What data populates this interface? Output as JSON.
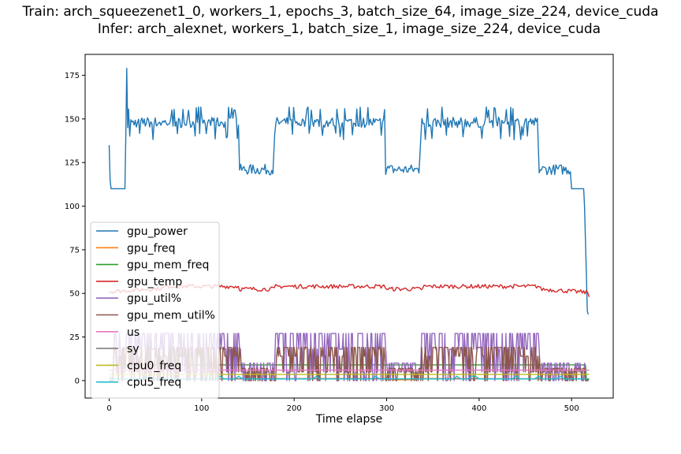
{
  "chart_data": {
    "type": "line",
    "title_lines": [
      "Train: arch_squeezenet1_0, workers_1, epochs_3, batch_size_64, image_size_224, device_cuda",
      "Infer: arch_alexnet, workers_1, batch_size_1, image_size_224, device_cuda"
    ],
    "xlabel": "Time elapse",
    "ylabel": "",
    "xlim": [
      -26,
      545
    ],
    "ylim": [
      -10,
      187
    ],
    "xticks": [
      0,
      100,
      200,
      300,
      400,
      500
    ],
    "yticks": [
      0,
      25,
      50,
      75,
      100,
      125,
      150,
      175
    ],
    "grid": false,
    "legend_position": "lower-left",
    "series": [
      {
        "name": "gpu_power",
        "color": "#1f77b4",
        "x": [
          0,
          1,
          2,
          3,
          8,
          12,
          17,
          18,
          19,
          20,
          22,
          24,
          26,
          30,
          34,
          38,
          42,
          46,
          50,
          56,
          60,
          64,
          70,
          76,
          82,
          88,
          94,
          100,
          106,
          112,
          118,
          124,
          128,
          133,
          140,
          146,
          152,
          158,
          164,
          170,
          176,
          180,
          181,
          186,
          192,
          200,
          208,
          216,
          224,
          232,
          240,
          248,
          256,
          264,
          272,
          280,
          288,
          294,
          300,
          306,
          312,
          318,
          324,
          330,
          336,
          338,
          344,
          352,
          360,
          368,
          376,
          384,
          392,
          400,
          408,
          416,
          424,
          432,
          440,
          448,
          456,
          462,
          466,
          470,
          478,
          486,
          494,
          500,
          506,
          512,
          513,
          514,
          516,
          518
        ],
        "y": [
          135,
          115,
          110,
          110,
          110,
          110,
          110,
          140,
          179,
          145,
          140,
          155,
          147,
          150,
          143,
          152,
          140,
          155,
          148,
          138,
          152,
          145,
          150,
          140,
          152,
          138,
          150,
          145,
          154,
          140,
          150,
          145,
          155,
          147,
          150,
          145,
          154,
          140,
          148,
          153,
          147,
          150,
          145,
          150,
          145,
          150,
          143,
          155,
          140,
          150,
          147,
          155,
          140,
          150,
          143,
          155,
          140,
          150,
          147,
          155,
          140,
          150,
          143,
          155,
          145,
          147,
          150,
          145,
          150,
          143,
          155,
          140,
          150,
          147,
          155,
          140,
          150,
          143,
          155,
          140,
          150,
          147,
          123,
          120,
          118,
          125,
          120,
          117,
          122,
          110,
          110,
          110,
          110,
          60
        ],
        "segments_y_level": [
          [
            121,
            144,
            122
          ],
          [
            178,
            180,
            120
          ],
          [
            300,
            337,
            121
          ],
          [
            467,
            500,
            121
          ],
          [
            500,
            514,
            110
          ],
          [
            514,
            519,
            40
          ]
        ]
      },
      {
        "name": "gpu_freq",
        "color": "#ff7f0e",
        "x": [
          0,
          515,
          516,
          519
        ],
        "y": [
          1,
          1,
          0.8,
          0.8
        ]
      },
      {
        "name": "gpu_mem_freq",
        "color": "#2ca02c",
        "x": [
          0,
          515,
          516,
          519
        ],
        "y": [
          9,
          9,
          0.5,
          0.5
        ]
      },
      {
        "name": "gpu_temp",
        "color": "#d62728",
        "x": [
          0,
          519
        ],
        "y": [
          50,
          48
        ]
      },
      {
        "name": "gpu_util%",
        "color": "#9467bd",
        "x": [
          0,
          519
        ],
        "y": [
          27,
          0
        ]
      },
      {
        "name": "gpu_mem_util%",
        "color": "#8c564b",
        "x": [
          0,
          519
        ],
        "y": [
          19,
          0
        ]
      },
      {
        "name": "us",
        "color": "#e377c2",
        "x": [
          0,
          519
        ],
        "y": [
          5,
          5
        ]
      },
      {
        "name": "sy",
        "color": "#7f7f7f",
        "x": [
          0,
          519
        ],
        "y": [
          1,
          1
        ]
      },
      {
        "name": "cpu0_freq",
        "color": "#bcbd22",
        "x": [
          0,
          519
        ],
        "y": [
          3.5,
          3.5
        ]
      },
      {
        "name": "cpu5_freq",
        "color": "#17becf",
        "x": [
          0,
          519
        ],
        "y": [
          1.5,
          1.5
        ]
      }
    ]
  }
}
